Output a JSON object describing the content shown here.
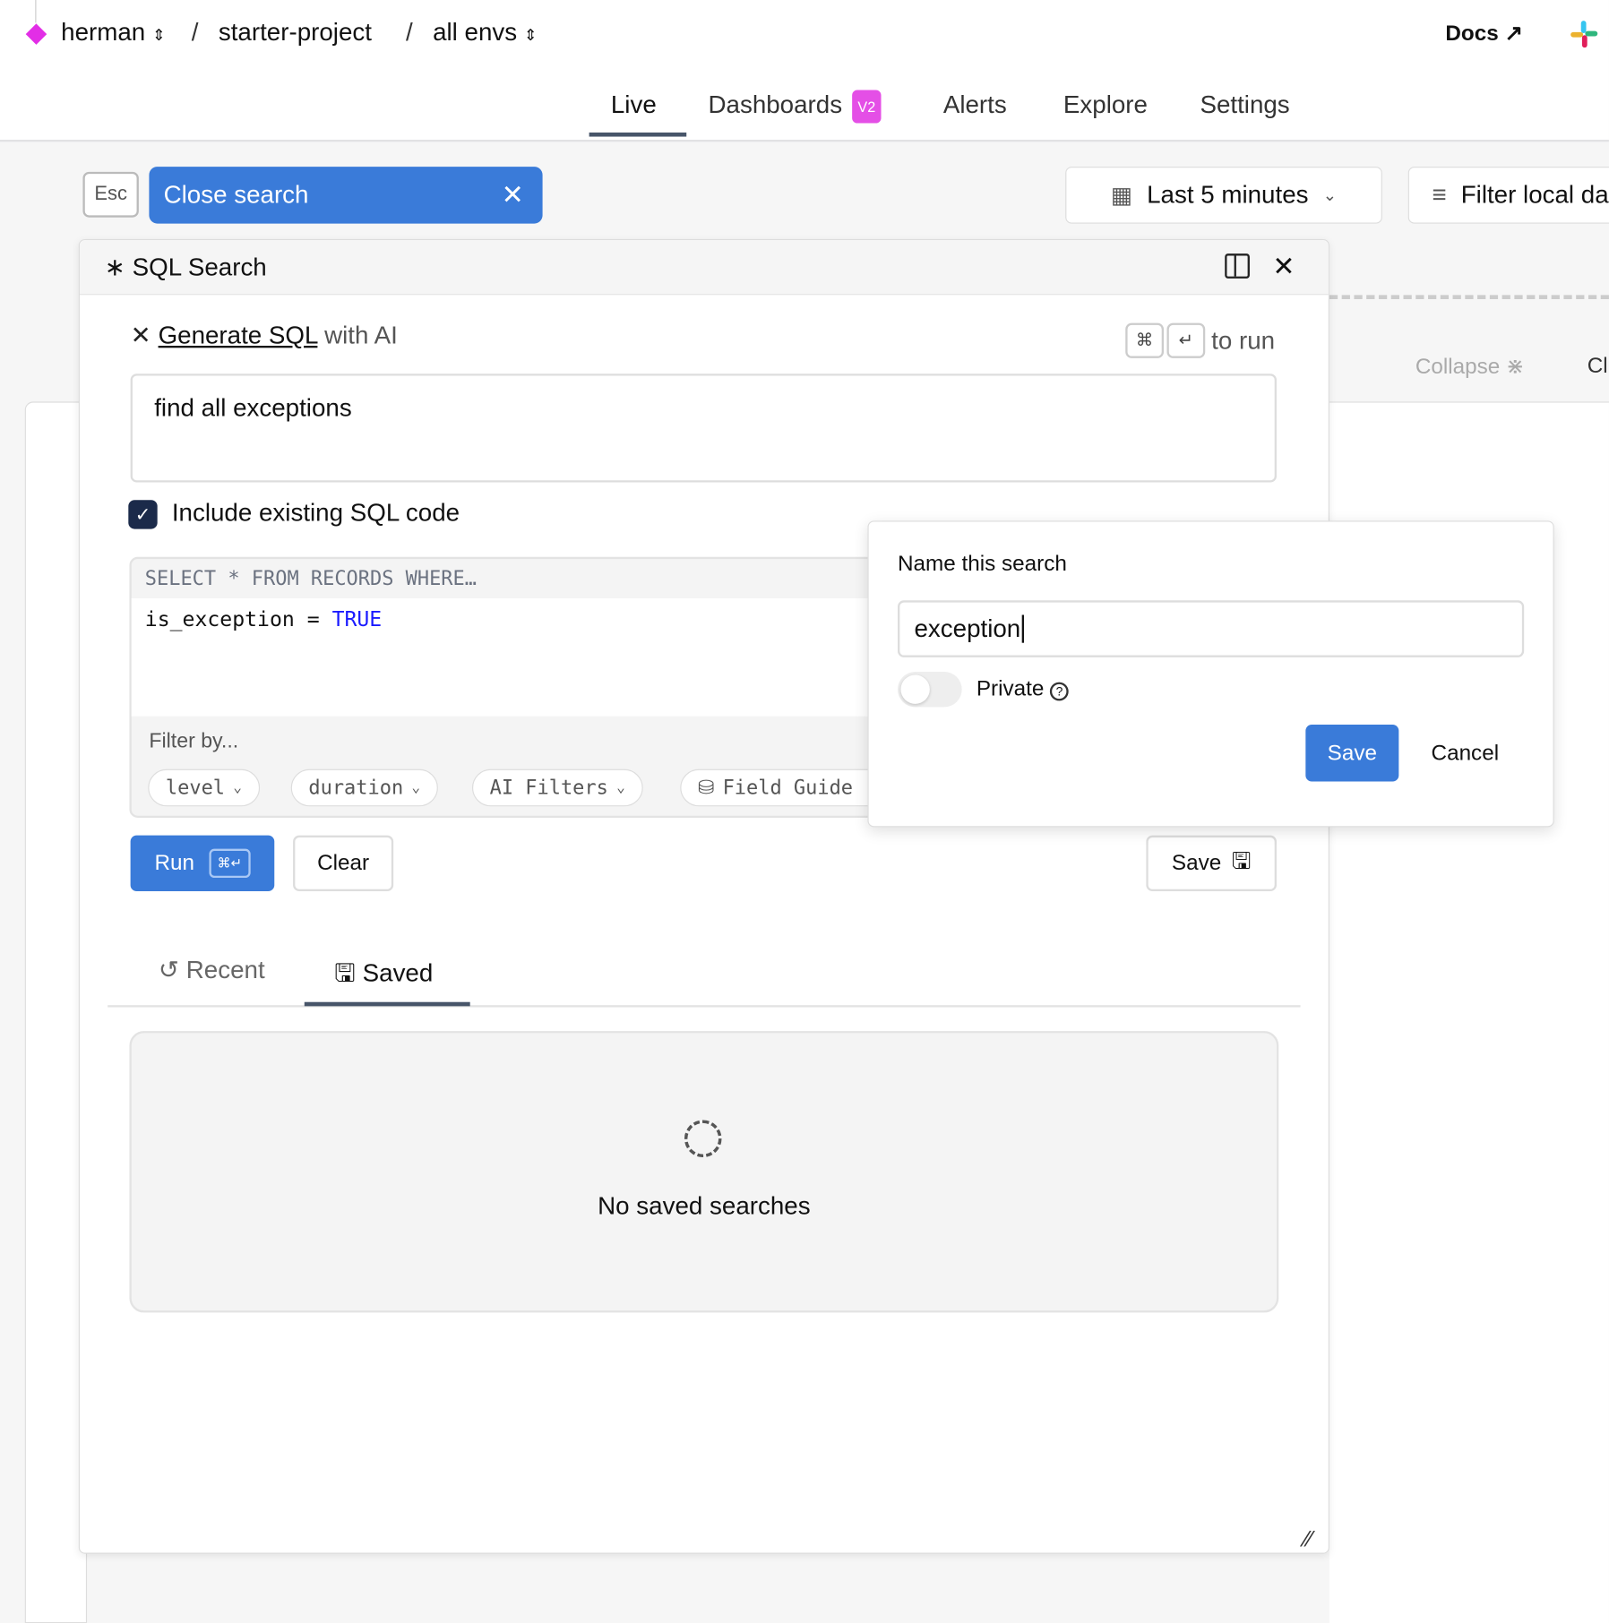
{
  "breadcrumb": {
    "org": "herman",
    "project": "starter-project",
    "env": "all envs",
    "separator": "/"
  },
  "header": {
    "docs_label": "Docs"
  },
  "nav": {
    "tabs": [
      {
        "label": "Live",
        "active": true
      },
      {
        "label": "Dashboards",
        "badge": "V2"
      },
      {
        "label": "Alerts"
      },
      {
        "label": "Explore"
      },
      {
        "label": "Settings"
      }
    ]
  },
  "toolbar": {
    "esc_label": "Esc",
    "close_search_label": "Close search",
    "time_range": "Last 5 minutes",
    "filter_label": "Filter local da"
  },
  "background": {
    "collapse_label": "Collapse",
    "cl_label": "Cl"
  },
  "sql_panel": {
    "title": "SQL Search",
    "ai": {
      "generate_link": "Generate SQL",
      "with_ai": "with AI",
      "shortcut_cmd": "⌘",
      "shortcut_enter": "↵",
      "to_run": "to run",
      "prompt_value": "find all exceptions"
    },
    "include_sql_label": "Include existing SQL code",
    "include_sql_checked": true,
    "editor": {
      "prefix": "SELECT * FROM RECORDS WHERE…",
      "code_ident": "is_exception",
      "code_op": "=",
      "code_value": "TRUE"
    },
    "filter_by_label": "Filter by...",
    "filters": [
      "level",
      "duration",
      "AI Filters",
      "Field Guide"
    ],
    "run_label": "Run",
    "run_shortcut": "⌘↵",
    "clear_label": "Clear",
    "save_label": "Save",
    "tabs": [
      {
        "label": "Recent"
      },
      {
        "label": "Saved",
        "active": true
      }
    ],
    "empty_text": "No saved searches"
  },
  "save_popup": {
    "title": "Name this search",
    "name_value": "exception",
    "private_label": "Private",
    "private_on": false,
    "save_label": "Save",
    "cancel_label": "Cancel"
  },
  "colors": {
    "primary": "#3a7bd9",
    "brand": "#e22ee6",
    "badge": "#e44fe6",
    "keyword": "#1a1aff"
  }
}
